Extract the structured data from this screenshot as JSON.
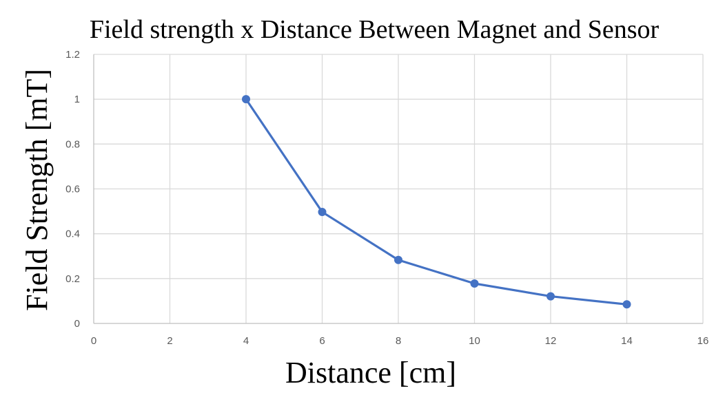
{
  "chart_data": {
    "type": "scatter",
    "title": "Field strength x Distance Between Magnet and Sensor",
    "xlabel": "Distance [cm]",
    "ylabel": "Field Strength [mT]",
    "xlim": [
      0,
      16
    ],
    "ylim": [
      0,
      1.2
    ],
    "xticks": [
      "0",
      "2",
      "4",
      "6",
      "8",
      "10",
      "12",
      "14",
      "16"
    ],
    "yticks": [
      "0",
      "0.2",
      "0.4",
      "0.6",
      "0.8",
      "1",
      "1.2"
    ],
    "grid": true,
    "lines_connected": true,
    "series": [
      {
        "color": "#4472c4",
        "x": [
          4,
          6,
          8,
          10,
          12,
          14
        ],
        "y": [
          1.0,
          0.497,
          0.283,
          0.178,
          0.121,
          0.085
        ]
      }
    ]
  }
}
